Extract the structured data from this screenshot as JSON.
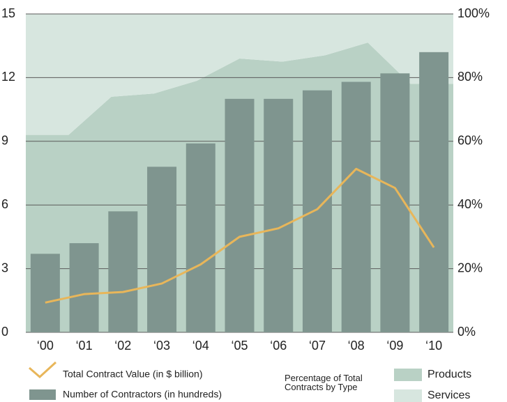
{
  "chart_data": {
    "type": "combo",
    "categories": [
      "‘00",
      "‘01",
      "‘02",
      "‘03",
      "‘04",
      "‘05",
      "‘06",
      "‘07",
      "‘08",
      "‘09",
      "‘10"
    ],
    "ylim": [
      0,
      15
    ],
    "yticks": [
      0,
      3,
      6,
      9,
      12,
      15
    ],
    "y2lim": [
      0,
      100
    ],
    "y2ticks": [
      {
        "value": 0,
        "label": "0%"
      },
      {
        "value": 20,
        "label": "20%"
      },
      {
        "value": 40,
        "label": "40%"
      },
      {
        "value": 60,
        "label": "60%"
      },
      {
        "value": 80,
        "label": "80%"
      },
      {
        "value": 100,
        "label": "100%"
      }
    ],
    "grid": true,
    "legend_title": "Percentage of Total Contracts by Type",
    "series": [
      {
        "name": "Products",
        "type": "area",
        "axis": "y2",
        "color": "#b9d1c5",
        "values": [
          62,
          62,
          74,
          75,
          79,
          86,
          85,
          87,
          91,
          78,
          78
        ]
      },
      {
        "name": "Services",
        "type": "area",
        "axis": "y2",
        "color": "#d7e6df",
        "values": [
          38,
          38,
          26,
          25,
          21,
          14,
          15,
          13,
          9,
          22,
          22
        ]
      },
      {
        "name": "Number of Contractors (in hundreds)",
        "type": "bar",
        "color": "#7f958f",
        "values": [
          3.7,
          4.2,
          5.7,
          7.8,
          8.9,
          11.0,
          11.0,
          11.4,
          11.8,
          12.2,
          13.2
        ]
      },
      {
        "name": "Total Contract Value (in $ billion)",
        "type": "line",
        "color": "#e8b65a",
        "values": [
          1.4,
          1.8,
          1.9,
          2.3,
          3.2,
          4.5,
          4.9,
          5.8,
          7.7,
          6.8,
          4.0
        ]
      }
    ]
  }
}
